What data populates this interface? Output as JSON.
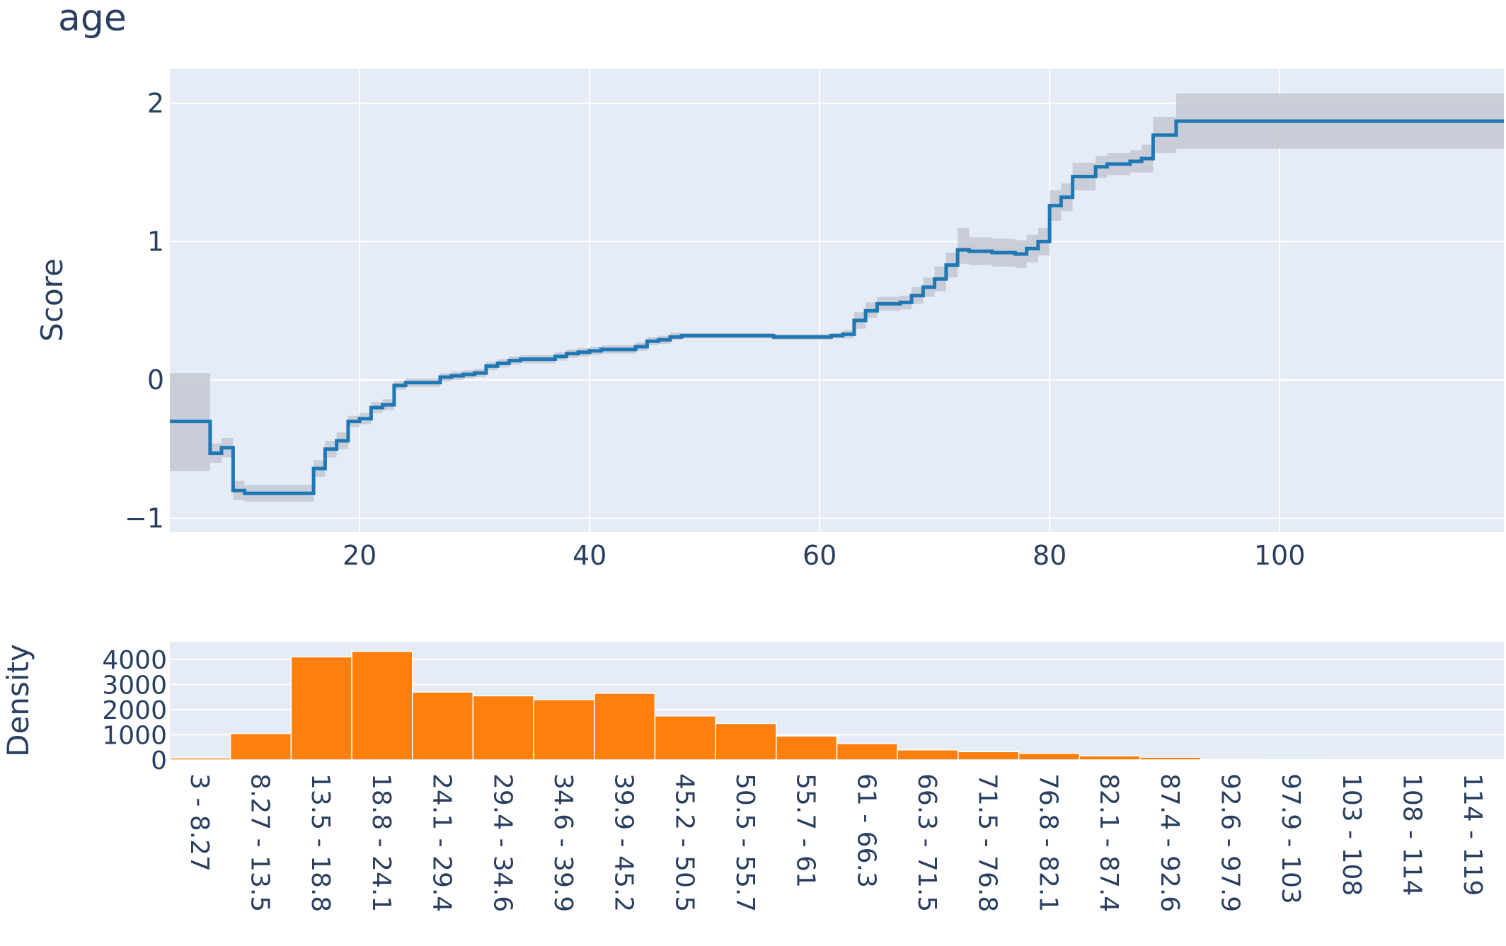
{
  "chart_data": [
    {
      "type": "line",
      "title": "age",
      "ylabel": "Score",
      "xlabel": "",
      "xlim": [
        3.5,
        119.5
      ],
      "ylim": [
        -1.1,
        2.25
      ],
      "xticks": [
        20,
        40,
        60,
        80,
        100
      ],
      "yticks": [
        -1,
        0,
        1,
        2
      ],
      "ytick_labels": [
        "−1",
        "0",
        "1",
        "2"
      ],
      "grid": true,
      "line_color": "#1f77b4",
      "band_color": "#c4c8d2",
      "series": [
        {
          "x": [
            3.5,
            7,
            8,
            9,
            10,
            11,
            12,
            13,
            14,
            15,
            16,
            17,
            18,
            19,
            20,
            21,
            22,
            23,
            24,
            25,
            26,
            27,
            28,
            29,
            30,
            31,
            32,
            33,
            34,
            35,
            36,
            37,
            38,
            39,
            40,
            41,
            42,
            43,
            44,
            45,
            46,
            47,
            48,
            50,
            52,
            54,
            56,
            58,
            60,
            61,
            62,
            63,
            64,
            65,
            66,
            67,
            68,
            69,
            70,
            71,
            72,
            73,
            74,
            75,
            76,
            77,
            78,
            79,
            80,
            81,
            82,
            84,
            85,
            86,
            87,
            88,
            89,
            90,
            91,
            95,
            100,
            110,
            119.5
          ],
          "y": [
            -0.3,
            -0.53,
            -0.49,
            -0.8,
            -0.82,
            -0.82,
            -0.82,
            -0.82,
            -0.82,
            -0.82,
            -0.64,
            -0.5,
            -0.44,
            -0.3,
            -0.28,
            -0.2,
            -0.18,
            -0.04,
            -0.02,
            -0.02,
            -0.02,
            0.02,
            0.03,
            0.04,
            0.05,
            0.1,
            0.12,
            0.14,
            0.15,
            0.15,
            0.15,
            0.17,
            0.19,
            0.2,
            0.21,
            0.22,
            0.22,
            0.22,
            0.24,
            0.28,
            0.29,
            0.31,
            0.32,
            0.32,
            0.32,
            0.32,
            0.31,
            0.31,
            0.31,
            0.32,
            0.33,
            0.43,
            0.5,
            0.55,
            0.55,
            0.56,
            0.61,
            0.67,
            0.73,
            0.83,
            0.94,
            0.93,
            0.93,
            0.92,
            0.92,
            0.91,
            0.95,
            1.0,
            1.26,
            1.32,
            1.47,
            1.54,
            1.56,
            1.56,
            1.58,
            1.6,
            1.77,
            1.77,
            1.87,
            1.87,
            1.87,
            1.87,
            1.87
          ],
          "lower": [
            -0.66,
            -0.6,
            -0.56,
            -0.87,
            -0.88,
            -0.88,
            -0.88,
            -0.88,
            -0.88,
            -0.88,
            -0.7,
            -0.56,
            -0.5,
            -0.34,
            -0.32,
            -0.24,
            -0.22,
            -0.07,
            -0.05,
            -0.05,
            -0.05,
            -0.01,
            0.0,
            0.01,
            0.02,
            0.07,
            0.09,
            0.11,
            0.12,
            0.12,
            0.12,
            0.14,
            0.16,
            0.17,
            0.18,
            0.19,
            0.19,
            0.19,
            0.21,
            0.25,
            0.26,
            0.29,
            0.3,
            0.3,
            0.3,
            0.3,
            0.29,
            0.29,
            0.29,
            0.3,
            0.3,
            0.37,
            0.45,
            0.5,
            0.5,
            0.51,
            0.55,
            0.6,
            0.64,
            0.74,
            0.84,
            0.83,
            0.83,
            0.82,
            0.82,
            0.81,
            0.85,
            0.9,
            1.15,
            1.22,
            1.37,
            1.46,
            1.48,
            1.48,
            1.5,
            1.5,
            1.64,
            1.64,
            1.67,
            1.67,
            1.67,
            1.67,
            1.67
          ],
          "upper": [
            0.05,
            -0.46,
            -0.42,
            -0.73,
            -0.76,
            -0.76,
            -0.76,
            -0.76,
            -0.76,
            -0.76,
            -0.58,
            -0.44,
            -0.38,
            -0.26,
            -0.24,
            -0.16,
            -0.14,
            -0.01,
            0.01,
            0.01,
            0.01,
            0.05,
            0.06,
            0.07,
            0.08,
            0.13,
            0.15,
            0.17,
            0.18,
            0.18,
            0.18,
            0.2,
            0.22,
            0.23,
            0.24,
            0.25,
            0.25,
            0.25,
            0.27,
            0.31,
            0.32,
            0.34,
            0.34,
            0.34,
            0.34,
            0.34,
            0.33,
            0.33,
            0.33,
            0.34,
            0.36,
            0.49,
            0.56,
            0.6,
            0.6,
            0.61,
            0.67,
            0.74,
            0.82,
            0.92,
            1.1,
            1.03,
            1.03,
            1.02,
            1.02,
            1.01,
            1.05,
            1.1,
            1.37,
            1.42,
            1.57,
            1.62,
            1.64,
            1.64,
            1.66,
            1.7,
            1.9,
            1.9,
            2.07,
            2.07,
            2.07,
            2.07,
            2.07
          ]
        }
      ]
    },
    {
      "type": "bar",
      "title": "",
      "ylabel": "Density",
      "xlabel": "",
      "ylim": [
        0,
        4700
      ],
      "yticks": [
        0,
        1000,
        2000,
        3000,
        4000
      ],
      "ytick_labels": [
        "0",
        "1000",
        "2000",
        "3000",
        "4000"
      ],
      "grid": true,
      "bar_color": "#ff7f0e",
      "categories": [
        "3 - 8.27",
        "8.27 - 13.5",
        "13.5 - 18.8",
        "18.8 - 24.1",
        "24.1 - 29.4",
        "29.4 - 34.6",
        "34.6 - 39.9",
        "39.9 - 45.2",
        "45.2 - 50.5",
        "50.5 - 55.7",
        "55.7 - 61",
        "61 - 66.3",
        "66.3 - 71.5",
        "71.5 - 76.8",
        "76.8 - 82.1",
        "82.1 - 87.4",
        "87.4 - 92.6",
        "92.6 - 97.9",
        "97.9 - 103",
        "103 - 108",
        "108 - 114",
        "114 - 119"
      ],
      "values": [
        80,
        1050,
        4100,
        4320,
        2700,
        2550,
        2400,
        2650,
        1750,
        1450,
        950,
        650,
        400,
        330,
        260,
        160,
        110,
        20,
        10,
        5,
        3,
        2
      ]
    }
  ]
}
